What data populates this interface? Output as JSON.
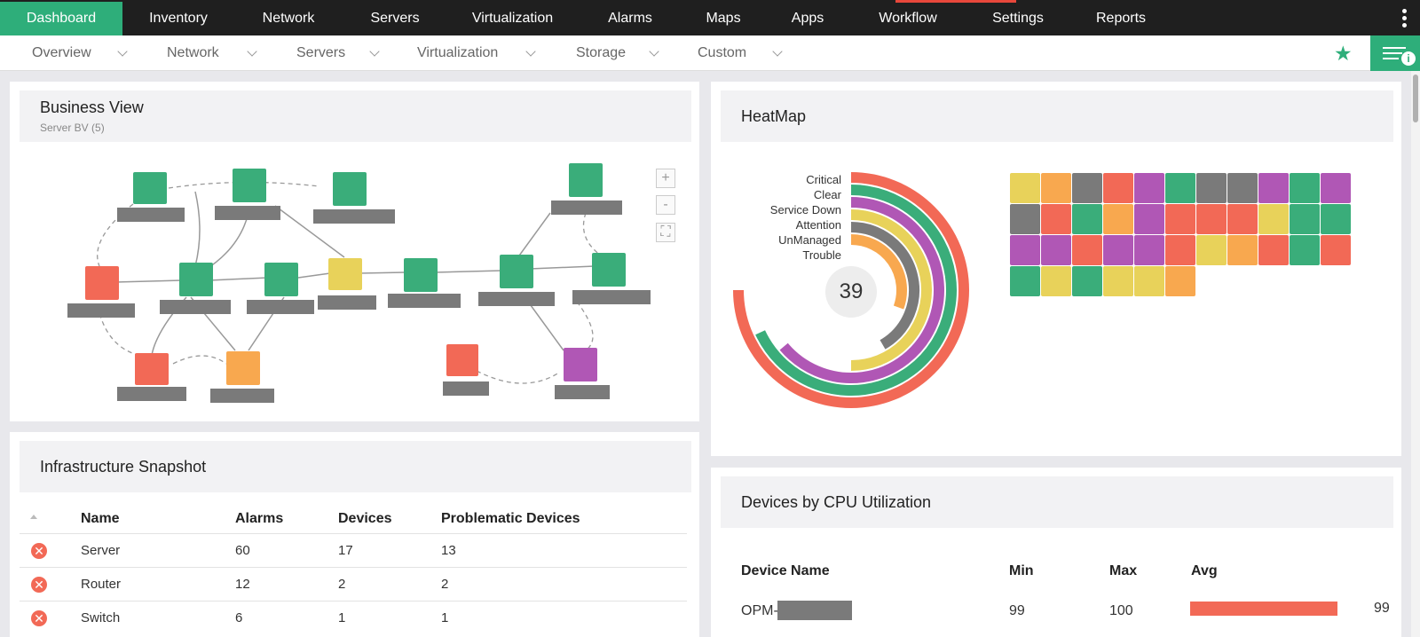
{
  "top_nav": {
    "tabs": [
      "Dashboard",
      "Inventory",
      "Network",
      "Servers",
      "Virtualization",
      "Alarms",
      "Maps",
      "Apps",
      "Workflow",
      "Settings",
      "Reports"
    ],
    "active": "Dashboard"
  },
  "sub_nav": {
    "items": [
      "Overview",
      "Network",
      "Servers",
      "Virtualization",
      "Storage",
      "Custom"
    ]
  },
  "business_view": {
    "title": "Business View",
    "subtitle": "Server BV (5)",
    "zoom_in": "+",
    "zoom_out": "-"
  },
  "heatmap": {
    "title": "HeatMap",
    "legend": [
      "Critical",
      "Clear",
      "Service Down",
      "Attention",
      "UnManaged",
      "Trouble"
    ],
    "total": "39",
    "colors": {
      "Critical": "#f26956",
      "Clear": "#3aad7a",
      "Service Down": "#b057b5",
      "Attention": "#e8d25a",
      "UnManaged": "#7a7a7a",
      "Trouble": "#f8a84f"
    },
    "cells": [
      [
        "Attention",
        "Trouble",
        "UnManaged",
        "Critical",
        "Service Down",
        "Clear",
        "UnManaged",
        "UnManaged",
        "Service Down",
        "Clear",
        "Service Down"
      ],
      [
        "UnManaged",
        "Critical",
        "Clear",
        "Trouble",
        "Service Down",
        "Critical",
        "Critical",
        "Critical",
        "Attention",
        "Clear",
        "Clear"
      ],
      [
        "Service Down",
        "Service Down",
        "Critical",
        "Service Down",
        "Service Down",
        "Critical",
        "Attention",
        "Trouble",
        "Critical",
        "Clear",
        "Critical"
      ],
      [
        "Clear",
        "Attention",
        "Clear",
        "Attention",
        "Attention",
        "Trouble"
      ]
    ]
  },
  "infra": {
    "title": "Infrastructure Snapshot",
    "columns": [
      "Name",
      "Alarms",
      "Devices",
      "Problematic Devices"
    ],
    "rows": [
      [
        "Server",
        "60",
        "17",
        "13"
      ],
      [
        "Router",
        "12",
        "2",
        "2"
      ],
      [
        "Switch",
        "6",
        "1",
        "1"
      ]
    ]
  },
  "cpu": {
    "title": "Devices by CPU Utilization",
    "columns": [
      "Device Name",
      "Min",
      "Max",
      "Avg"
    ],
    "rows": [
      {
        "name": "OPM-",
        "min": "99",
        "max": "100",
        "avg": "99",
        "avg_percent": 99
      }
    ]
  }
}
